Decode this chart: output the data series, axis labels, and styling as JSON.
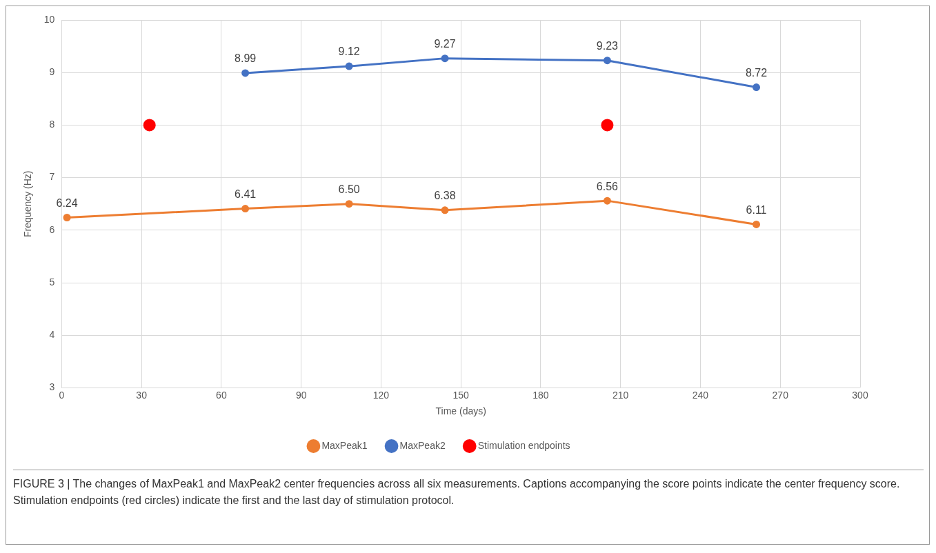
{
  "chart_data": {
    "type": "line",
    "xlabel": "Time (days)",
    "ylabel": "Frequency (Hz)",
    "xlim": [
      0,
      300
    ],
    "xticks": [
      0,
      30,
      60,
      90,
      120,
      150,
      180,
      210,
      240,
      270,
      300
    ],
    "ylim": [
      3,
      10
    ],
    "yticks": [
      3,
      4,
      5,
      6,
      7,
      8,
      9,
      10
    ],
    "grid": true,
    "legend": "bottom",
    "marker": "circle",
    "series": [
      {
        "name": "MaxPeak1",
        "color": "#ed7d31",
        "x": [
          2,
          69,
          108,
          144,
          205,
          261
        ],
        "values": [
          6.24,
          6.41,
          6.5,
          6.38,
          6.56,
          6.11
        ],
        "value_labels": [
          "6.24",
          "6.41",
          "6.50",
          "6.38",
          "6.56",
          "6.11"
        ]
      },
      {
        "name": "MaxPeak2",
        "color": "#4472c4",
        "x": [
          69,
          108,
          144,
          205,
          261
        ],
        "values": [
          8.99,
          9.12,
          9.27,
          9.23,
          8.72
        ],
        "value_labels": [
          "8.99",
          "9.12",
          "9.27",
          "9.23",
          "8.72"
        ]
      },
      {
        "name": "Stimulation endpoints",
        "type": "scatter",
        "color": "#ff0000",
        "x": [
          33,
          205
        ],
        "values": [
          8,
          8
        ]
      }
    ],
    "annotations": [
      "FIGURE 3 | The changes of MaxPeak1 and MaxPeak2 center frequencies across all six measurements. Captions accompanying the score points indicate the center frequency score. Stimulation endpoints (red circles) indicate the first and the last day of stimulation protocol."
    ]
  }
}
